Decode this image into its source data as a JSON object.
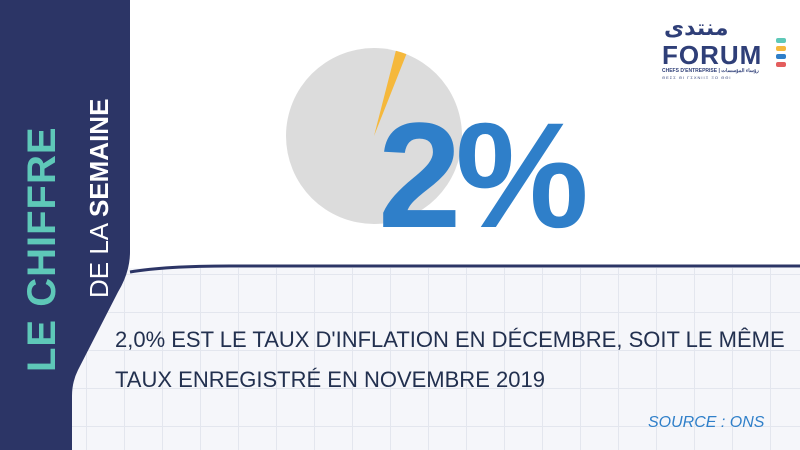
{
  "colors": {
    "navy": "#2c3566",
    "teal": "#5ec8b8",
    "blue": "#2f7fc9",
    "pie_gray": "#dcdcdc",
    "pie_slice": "#f5b83c"
  },
  "banner": {
    "title": "LE CHIFFRE",
    "subtitle_light": "DE LA",
    "subtitle_bold": "SEMAINE"
  },
  "logo": {
    "arabic": "منتدى",
    "name": "FORUM",
    "tagline": "CHEFS D'ENTREPRISE | رؤساء المؤسسات",
    "tagline2": "ΘΕΣΣ ΘΙ ΓΣΧΝΙΙΞ ΞΟ ΘΘΙ"
  },
  "headline": {
    "value": "2%"
  },
  "pie": {
    "share_percent": 2
  },
  "caption": {
    "line1": "2,0% EST LE TAUX D'INFLATION EN DÉCEMBRE, SOIT LE MÊME",
    "line2": "TAUX ENREGISTRÉ EN NOVEMBRE 2019"
  },
  "source": "SOURCE : ONS"
}
